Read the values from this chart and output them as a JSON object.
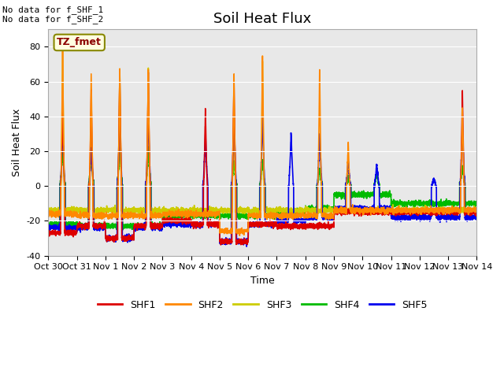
{
  "title": "Soil Heat Flux",
  "ylabel": "Soil Heat Flux",
  "xlabel": "Time",
  "ylim": [
    -40,
    90
  ],
  "xlim": [
    0,
    15
  ],
  "xtick_labels": [
    "Oct 30",
    "Oct 31",
    "Nov 1",
    "Nov 2",
    "Nov 3",
    "Nov 4",
    "Nov 5",
    "Nov 6",
    "Nov 7",
    "Nov 8",
    "Nov 9",
    "Nov 10",
    "Nov 11",
    "Nov 12",
    "Nov 13",
    "Nov 14"
  ],
  "xtick_positions": [
    0,
    1,
    2,
    3,
    4,
    5,
    6,
    7,
    8,
    9,
    10,
    11,
    12,
    13,
    14,
    15
  ],
  "series_colors": [
    "#dd0000",
    "#ff8800",
    "#cccc00",
    "#00bb00",
    "#0000ee"
  ],
  "series_labels": [
    "SHF1",
    "SHF2",
    "SHF3",
    "SHF4",
    "SHF5"
  ],
  "legend_note_1": "No data for f_SHF_1",
  "legend_note_2": "No data for f_SHF_2",
  "tz_label": "TZ_fmet",
  "axes_background": "#e8e8e8",
  "title_fontsize": 13,
  "label_fontsize": 9,
  "tick_fontsize": 8,
  "yticks": [
    -40,
    -20,
    0,
    20,
    40,
    60,
    80
  ]
}
